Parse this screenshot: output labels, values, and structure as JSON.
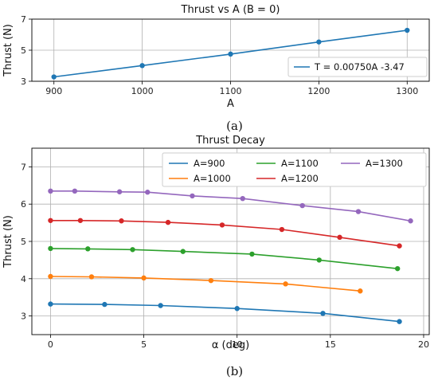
{
  "chart_data": [
    {
      "type": "line",
      "title": "Thrust vs A (B = 0)",
      "xlabel": "A",
      "ylabel": "Thrust (N)",
      "xlim": [
        875,
        1325
      ],
      "ylim": [
        3,
        7
      ],
      "xticks": [
        "900",
        "1000",
        "1100",
        "1200",
        "1300"
      ],
      "yticks": [
        "3",
        "5",
        "7"
      ],
      "grid": true,
      "legend_position": "lower-right",
      "caption": "(a)",
      "series": [
        {
          "name": "T = 0.00750A -3.47",
          "color": "#1f77b4",
          "x": [
            900,
            1000,
            1100,
            1200,
            1300
          ],
          "y": [
            3.28,
            4.01,
            4.75,
            5.53,
            6.28
          ]
        }
      ]
    },
    {
      "type": "line",
      "title": "Thrust Decay",
      "xlabel": "α (deg)",
      "ylabel": "Thrust (N)",
      "xlim": [
        -1,
        20.3
      ],
      "ylim": [
        2.5,
        7.5
      ],
      "xticks": [
        "0",
        "5",
        "10",
        "15",
        "20"
      ],
      "yticks": [
        "3",
        "4",
        "5",
        "6",
        "7"
      ],
      "grid": true,
      "legend_position": "top",
      "caption": "(b)",
      "series": [
        {
          "name": "A=900",
          "color": "#1f77b4",
          "x": [
            0,
            2.9,
            5.9,
            10.0,
            14.6,
            18.7
          ],
          "y": [
            3.32,
            3.31,
            3.28,
            3.2,
            3.07,
            2.85
          ]
        },
        {
          "name": "A=1000",
          "color": "#ff7f0e",
          "x": [
            0,
            2.2,
            5.0,
            8.6,
            12.6,
            16.6
          ],
          "y": [
            4.06,
            4.05,
            4.02,
            3.95,
            3.86,
            3.67
          ]
        },
        {
          "name": "A=1100",
          "color": "#2ca02c",
          "x": [
            0,
            2.0,
            4.4,
            7.1,
            10.8,
            14.4,
            18.6
          ],
          "y": [
            4.81,
            4.8,
            4.78,
            4.73,
            4.66,
            4.5,
            4.27
          ]
        },
        {
          "name": "A=1200",
          "color": "#d62728",
          "x": [
            0,
            1.6,
            3.8,
            6.3,
            9.2,
            12.4,
            15.5,
            18.7
          ],
          "y": [
            5.56,
            5.56,
            5.55,
            5.51,
            5.44,
            5.32,
            5.11,
            4.88
          ]
        },
        {
          "name": "A=1300",
          "color": "#9467bd",
          "x": [
            0,
            1.3,
            3.7,
            5.2,
            7.6,
            10.3,
            13.5,
            16.5,
            19.3
          ],
          "y": [
            6.35,
            6.35,
            6.33,
            6.32,
            6.22,
            6.15,
            5.96,
            5.8,
            5.55
          ]
        }
      ]
    }
  ]
}
